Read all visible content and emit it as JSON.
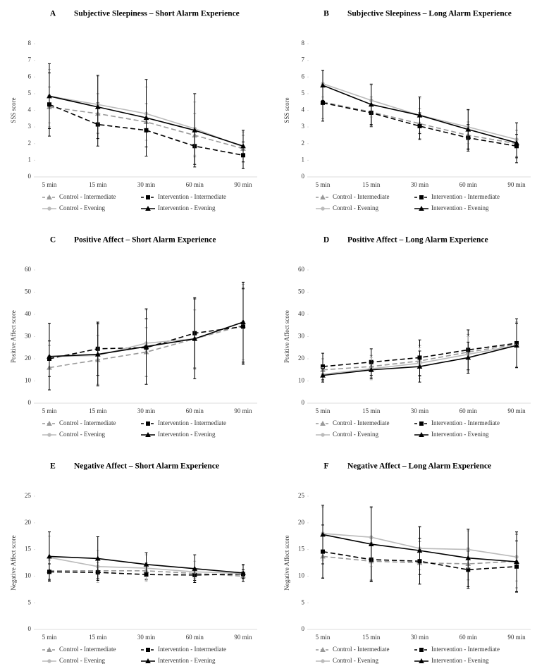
{
  "chart_data": [
    {
      "type": "line",
      "panel": "A",
      "title": "Subjective Sleepiness – Short Alarm Experience",
      "ylabel": "SSS score",
      "categories": [
        "5 min",
        "15 min",
        "30 min",
        "60 min",
        "90 min"
      ],
      "ylim": [
        0,
        8
      ],
      "yticks": [
        0,
        1,
        2,
        3,
        4,
        5,
        6,
        7,
        8
      ],
      "series": [
        {
          "name": "Control - Intermediate",
          "color": "#999999",
          "dash": true,
          "marker": "triangle",
          "values": [
            4.2,
            3.8,
            3.3,
            2.5,
            1.7
          ],
          "errors": [
            1.2,
            1.2,
            1.1,
            1.3,
            0.8
          ]
        },
        {
          "name": "Intervention - Intermediate",
          "color": "#000000",
          "dash": true,
          "marker": "square",
          "values": [
            4.35,
            3.15,
            2.8,
            1.85,
            1.3
          ],
          "errors": [
            1.9,
            1.3,
            1.0,
            1.1,
            0.8
          ]
        },
        {
          "name": "Control - Evening",
          "color": "#bbbbbb",
          "dash": false,
          "marker": "circle",
          "values": [
            4.85,
            4.35,
            3.8,
            2.9,
            1.8
          ],
          "errors": [
            1.6,
            1.7,
            1.6,
            1.6,
            0.9
          ]
        },
        {
          "name": "Intervention - Evening",
          "color": "#000000",
          "dash": false,
          "marker": "triangle",
          "values": [
            4.85,
            4.2,
            3.55,
            2.8,
            1.85
          ],
          "errors": [
            1.95,
            1.9,
            2.3,
            2.2,
            0.95
          ]
        }
      ]
    },
    {
      "type": "line",
      "panel": "B",
      "title": "Subjective Sleepiness – Long Alarm Experience",
      "ylabel": "SSS score",
      "categories": [
        "5 min",
        "15 min",
        "30 min",
        "60 min",
        "90 min"
      ],
      "ylim": [
        0,
        8
      ],
      "yticks": [
        0,
        1,
        2,
        3,
        4,
        5,
        6,
        7,
        8
      ],
      "series": [
        {
          "name": "Control - Intermediate",
          "color": "#999999",
          "dash": true,
          "marker": "triangle",
          "values": [
            4.5,
            3.9,
            3.2,
            2.5,
            2.0
          ],
          "errors": [
            1.0,
            0.9,
            0.9,
            0.8,
            0.8
          ]
        },
        {
          "name": "Intervention - Intermediate",
          "color": "#000000",
          "dash": true,
          "marker": "square",
          "values": [
            4.45,
            3.85,
            3.05,
            2.35,
            1.85
          ],
          "errors": [
            1.1,
            0.8,
            0.8,
            0.8,
            0.7
          ]
        },
        {
          "name": "Control - Evening",
          "color": "#bbbbbb",
          "dash": false,
          "marker": "circle",
          "values": [
            5.6,
            4.6,
            3.7,
            3.0,
            2.25
          ],
          "errors": [
            0.8,
            1.0,
            1.0,
            1.0,
            1.0
          ]
        },
        {
          "name": "Intervention - Evening",
          "color": "#000000",
          "dash": false,
          "marker": "triangle",
          "values": [
            5.5,
            4.35,
            3.7,
            2.85,
            2.05
          ],
          "errors": [
            0.9,
            1.2,
            1.1,
            1.2,
            1.2
          ]
        }
      ]
    },
    {
      "type": "line",
      "panel": "C",
      "title": "Positive Affect – Short Alarm Experience",
      "ylabel": "Positive Affect score",
      "categories": [
        "5 min",
        "15 min",
        "30 min",
        "60 min",
        "90 min"
      ],
      "ylim": [
        0,
        60
      ],
      "yticks": [
        0,
        10,
        20,
        30,
        40,
        50,
        60
      ],
      "series": [
        {
          "name": "Control - Intermediate",
          "color": "#999999",
          "dash": true,
          "marker": "triangle",
          "values": [
            16,
            19.5,
            23,
            29,
            35
          ],
          "errors": [
            10,
            11,
            11,
            13,
            17
          ]
        },
        {
          "name": "Intervention - Intermediate",
          "color": "#000000",
          "dash": true,
          "marker": "square",
          "values": [
            20,
            24.5,
            25,
            31.5,
            34.5
          ],
          "errors": [
            8,
            12,
            13,
            16,
            17
          ]
        },
        {
          "name": "Control - Evening",
          "color": "#bbbbbb",
          "dash": false,
          "marker": "circle",
          "values": [
            21,
            21.5,
            27,
            29,
            36.5
          ],
          "errors": [
            15,
            14,
            15,
            18,
            17
          ]
        },
        {
          "name": "Intervention - Evening",
          "color": "#000000",
          "dash": false,
          "marker": "triangle",
          "values": [
            21,
            22,
            25.5,
            29,
            36.5
          ],
          "errors": [
            15,
            14,
            17,
            18,
            18
          ]
        }
      ]
    },
    {
      "type": "line",
      "panel": "D",
      "title": "Positive Affect – Long Alarm Experience",
      "ylabel": "Positive Affect score",
      "categories": [
        "5 min",
        "15 min",
        "30 min",
        "60 min",
        "90 min"
      ],
      "ylim": [
        0,
        60
      ],
      "yticks": [
        0,
        10,
        20,
        30,
        40,
        50,
        60
      ],
      "series": [
        {
          "name": "Control - Intermediate",
          "color": "#999999",
          "dash": true,
          "marker": "triangle",
          "values": [
            15,
            16.5,
            19,
            23,
            26.5
          ],
          "errors": [
            5,
            5,
            7,
            8,
            10
          ]
        },
        {
          "name": "Intervention - Intermediate",
          "color": "#000000",
          "dash": true,
          "marker": "square",
          "values": [
            16.5,
            18.5,
            20.5,
            24,
            27
          ],
          "errors": [
            6,
            6,
            8,
            9,
            11
          ]
        },
        {
          "name": "Control - Evening",
          "color": "#bbbbbb",
          "dash": false,
          "marker": "circle",
          "values": [
            13,
            15.5,
            18,
            22,
            26
          ],
          "errors": [
            3,
            5,
            7,
            8,
            10
          ]
        },
        {
          "name": "Intervention - Evening",
          "color": "#000000",
          "dash": false,
          "marker": "triangle",
          "values": [
            12.5,
            15,
            16.5,
            20.5,
            26
          ],
          "errors": [
            3,
            4,
            7,
            7,
            10
          ]
        }
      ]
    },
    {
      "type": "line",
      "panel": "E",
      "title": "Negative Affect – Short Alarm Experience",
      "ylabel": "Negative Affect score",
      "categories": [
        "5 min",
        "15 min",
        "30 min",
        "60 min",
        "90 min"
      ],
      "ylim": [
        0,
        25
      ],
      "yticks": [
        0,
        5,
        10,
        15,
        20,
        25
      ],
      "series": [
        {
          "name": "Control - Intermediate",
          "color": "#999999",
          "dash": true,
          "marker": "triangle",
          "values": [
            11,
            11,
            11,
            10.5,
            10
          ],
          "errors": [
            2,
            1.5,
            1.5,
            1,
            0.5
          ]
        },
        {
          "name": "Intervention - Intermediate",
          "color": "#000000",
          "dash": true,
          "marker": "square",
          "values": [
            10.8,
            10.7,
            10.3,
            10.2,
            10.4
          ],
          "errors": [
            1.5,
            1.2,
            1,
            1,
            0.8
          ]
        },
        {
          "name": "Control - Evening",
          "color": "#bbbbbb",
          "dash": false,
          "marker": "circle",
          "values": [
            13.5,
            11.8,
            11.5,
            10.8,
            10.5
          ],
          "errors": [
            4,
            3,
            2.5,
            2,
            1.5
          ]
        },
        {
          "name": "Intervention - Evening",
          "color": "#000000",
          "dash": false,
          "marker": "triangle",
          "values": [
            13.7,
            13.3,
            12.2,
            11.4,
            10.6
          ],
          "errors": [
            4.6,
            4.1,
            2.2,
            2.6,
            1.6
          ]
        }
      ]
    },
    {
      "type": "line",
      "panel": "F",
      "title": "Negative Affect – Long Alarm Experience",
      "ylabel": "Negative Affect score",
      "categories": [
        "5 min",
        "15 min",
        "30 min",
        "60 min",
        "90 min"
      ],
      "ylim": [
        0,
        25
      ],
      "yticks": [
        0,
        5,
        10,
        15,
        20,
        25
      ],
      "series": [
        {
          "name": "Control - Intermediate",
          "color": "#999999",
          "dash": true,
          "marker": "triangle",
          "values": [
            13.7,
            12.8,
            12.5,
            12.3,
            12.8
          ],
          "errors": [
            4,
            3.5,
            4,
            3,
            5
          ]
        },
        {
          "name": "Intervention - Intermediate",
          "color": "#000000",
          "dash": true,
          "marker": "square",
          "values": [
            14.6,
            13.1,
            12.8,
            11.2,
            11.8
          ],
          "errors": [
            5,
            4,
            4.3,
            3.5,
            4.8
          ]
        },
        {
          "name": "Control - Evening",
          "color": "#bbbbbb",
          "dash": false,
          "marker": "circle",
          "values": [
            18,
            17.3,
            15.2,
            15,
            13.6
          ],
          "errors": [
            5,
            5.5,
            4,
            3.5,
            4.5
          ]
        },
        {
          "name": "Intervention - Evening",
          "color": "#000000",
          "dash": false,
          "marker": "triangle",
          "values": [
            17.8,
            16,
            14.8,
            13.4,
            12.7
          ],
          "errors": [
            5.5,
            7,
            4.5,
            5.4,
            5.6
          ]
        }
      ]
    }
  ]
}
